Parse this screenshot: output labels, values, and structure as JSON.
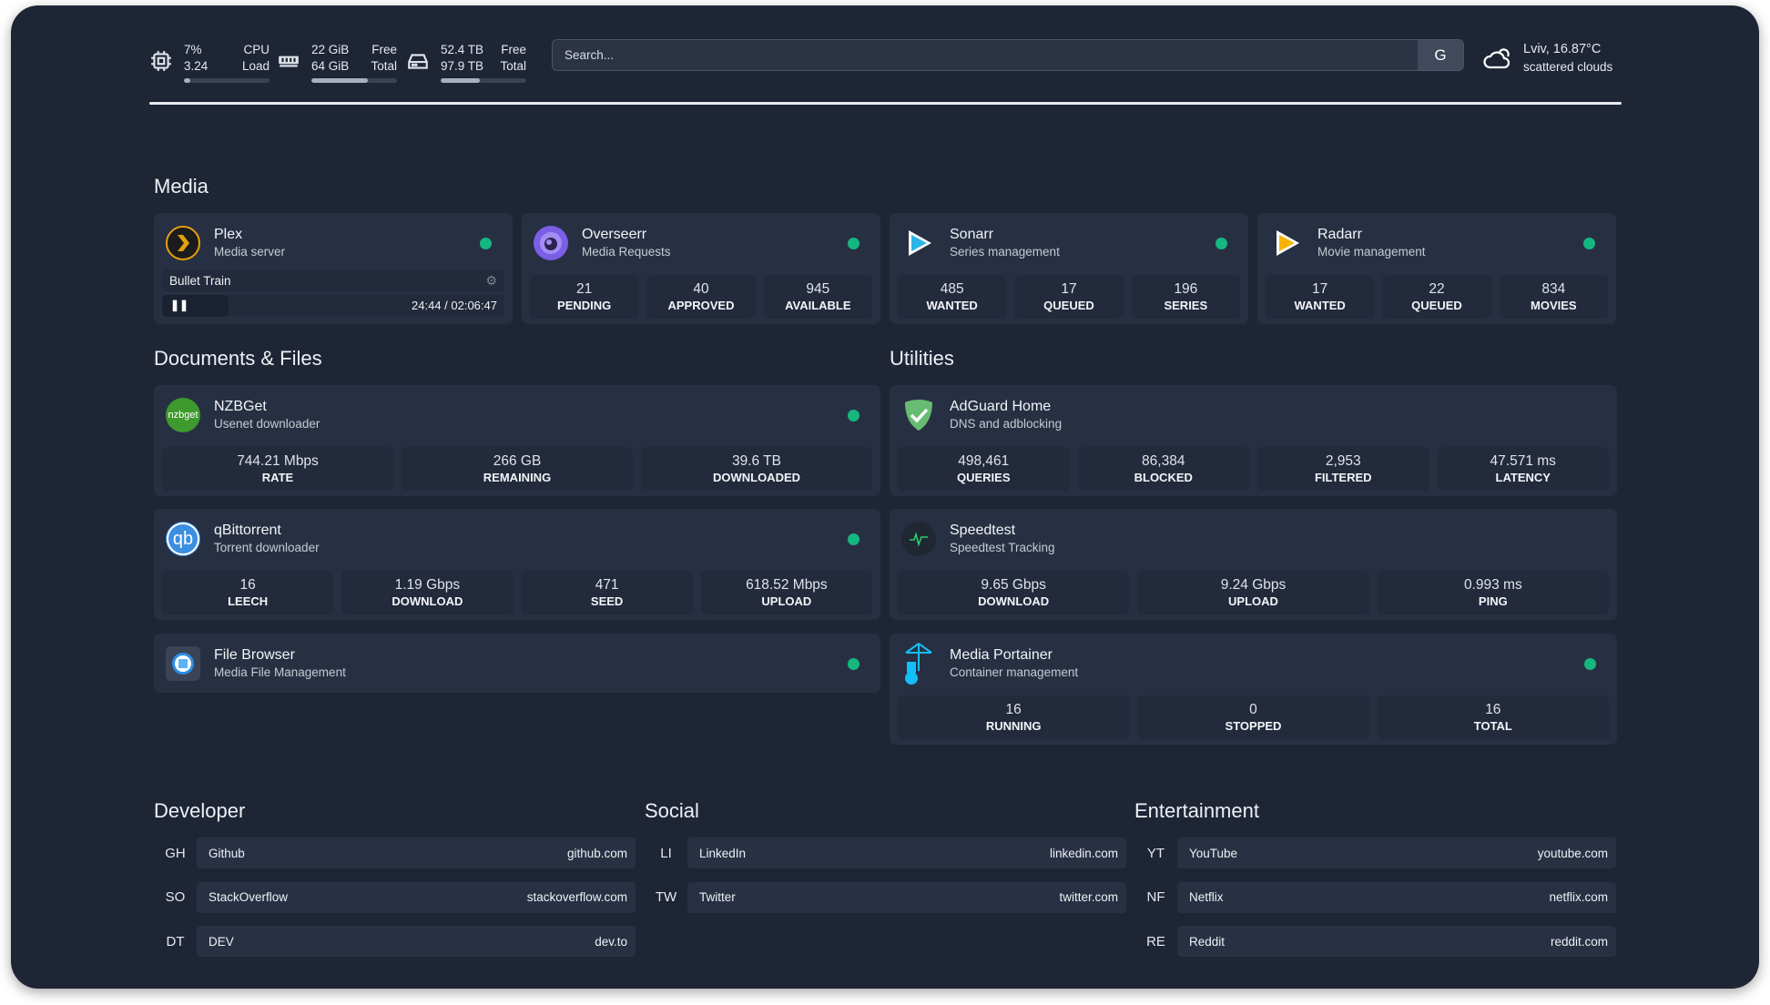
{
  "header": {
    "cpu": {
      "icon": "cpu-icon",
      "top": "7%",
      "bottom": "3.24",
      "top_label": "CPU",
      "bottom_label": "Load",
      "fill_percent": 7
    },
    "memory": {
      "icon": "memory-icon",
      "top": "22 GiB",
      "bottom": "64 GiB",
      "top_label": "Free",
      "bottom_label": "Total",
      "fill_percent": 66
    },
    "disk": {
      "icon": "disk-icon",
      "top": "52.4 TB",
      "bottom": "97.9 TB",
      "top_label": "Free",
      "bottom_label": "Total",
      "fill_percent": 46
    },
    "search": {
      "placeholder": "Search...",
      "engine_button": "G"
    },
    "weather": {
      "icon": "cloud-icon",
      "location_temp": "Lviv, 16.87°C",
      "condition": "scattered clouds"
    }
  },
  "colors": {
    "background": "#1e2535",
    "card": "#273043",
    "stat": "#222a3b",
    "status_ok": "#16b67f"
  },
  "sections": {
    "media": "Media",
    "documents": "Documents & Files",
    "utilities": "Utilities",
    "developer": "Developer",
    "social": "Social",
    "entertainment": "Entertainment"
  },
  "plex": {
    "title": "Plex",
    "subtitle": "Media server",
    "now_playing": "Bullet Train",
    "time": "24:44 / 02:06:47",
    "progress_percent": 19.5
  },
  "media_cards": [
    {
      "key": "overseerr",
      "title": "Overseerr",
      "subtitle": "Media Requests",
      "status": true,
      "stats": [
        {
          "v": "21",
          "l": "PENDING"
        },
        {
          "v": "40",
          "l": "APPROVED"
        },
        {
          "v": "945",
          "l": "AVAILABLE"
        }
      ]
    },
    {
      "key": "sonarr",
      "title": "Sonarr",
      "subtitle": "Series management",
      "status": true,
      "stats": [
        {
          "v": "485",
          "l": "WANTED"
        },
        {
          "v": "17",
          "l": "QUEUED"
        },
        {
          "v": "196",
          "l": "SERIES"
        }
      ]
    },
    {
      "key": "radarr",
      "title": "Radarr",
      "subtitle": "Movie management",
      "status": true,
      "stats": [
        {
          "v": "17",
          "l": "WANTED"
        },
        {
          "v": "22",
          "l": "QUEUED"
        },
        {
          "v": "834",
          "l": "MOVIES"
        }
      ]
    }
  ],
  "documents": [
    {
      "key": "nzbget",
      "title": "NZBGet",
      "subtitle": "Usenet downloader",
      "status": true,
      "stats": [
        {
          "v": "744.21 Mbps",
          "l": "RATE"
        },
        {
          "v": "266 GB",
          "l": "REMAINING"
        },
        {
          "v": "39.6 TB",
          "l": "DOWNLOADED"
        }
      ]
    },
    {
      "key": "qbittorrent",
      "title": "qBittorrent",
      "subtitle": "Torrent downloader",
      "status": true,
      "stats": [
        {
          "v": "16",
          "l": "LEECH"
        },
        {
          "v": "1.19 Gbps",
          "l": "DOWNLOAD"
        },
        {
          "v": "471",
          "l": "SEED"
        },
        {
          "v": "618.52 Mbps",
          "l": "UPLOAD"
        }
      ]
    },
    {
      "key": "filebrowser",
      "title": "File Browser",
      "subtitle": "Media File Management",
      "status": true,
      "stats": []
    }
  ],
  "utilities": [
    {
      "key": "adguard",
      "title": "AdGuard Home",
      "subtitle": "DNS and adblocking",
      "status": false,
      "stats": [
        {
          "v": "498,461",
          "l": "QUERIES"
        },
        {
          "v": "86,384",
          "l": "BLOCKED"
        },
        {
          "v": "2,953",
          "l": "FILTERED"
        },
        {
          "v": "47.571 ms",
          "l": "LATENCY"
        }
      ]
    },
    {
      "key": "speedtest",
      "title": "Speedtest",
      "subtitle": "Speedtest Tracking",
      "status": false,
      "stats": [
        {
          "v": "9.65 Gbps",
          "l": "DOWNLOAD"
        },
        {
          "v": "9.24 Gbps",
          "l": "UPLOAD"
        },
        {
          "v": "0.993 ms",
          "l": "PING"
        }
      ]
    },
    {
      "key": "portainer",
      "title": "Media Portainer",
      "subtitle": "Container management",
      "status": true,
      "stats": [
        {
          "v": "16",
          "l": "RUNNING"
        },
        {
          "v": "0",
          "l": "STOPPED"
        },
        {
          "v": "16",
          "l": "TOTAL"
        }
      ]
    }
  ],
  "bookmarks": {
    "developer": [
      {
        "abbr": "GH",
        "name": "Github",
        "url": "github.com"
      },
      {
        "abbr": "SO",
        "name": "StackOverflow",
        "url": "stackoverflow.com"
      },
      {
        "abbr": "DT",
        "name": "DEV",
        "url": "dev.to"
      }
    ],
    "social": [
      {
        "abbr": "LI",
        "name": "LinkedIn",
        "url": "linkedin.com"
      },
      {
        "abbr": "TW",
        "name": "Twitter",
        "url": "twitter.com"
      }
    ],
    "entertainment": [
      {
        "abbr": "YT",
        "name": "YouTube",
        "url": "youtube.com"
      },
      {
        "abbr": "NF",
        "name": "Netflix",
        "url": "netflix.com"
      },
      {
        "abbr": "RE",
        "name": "Reddit",
        "url": "reddit.com"
      }
    ]
  }
}
